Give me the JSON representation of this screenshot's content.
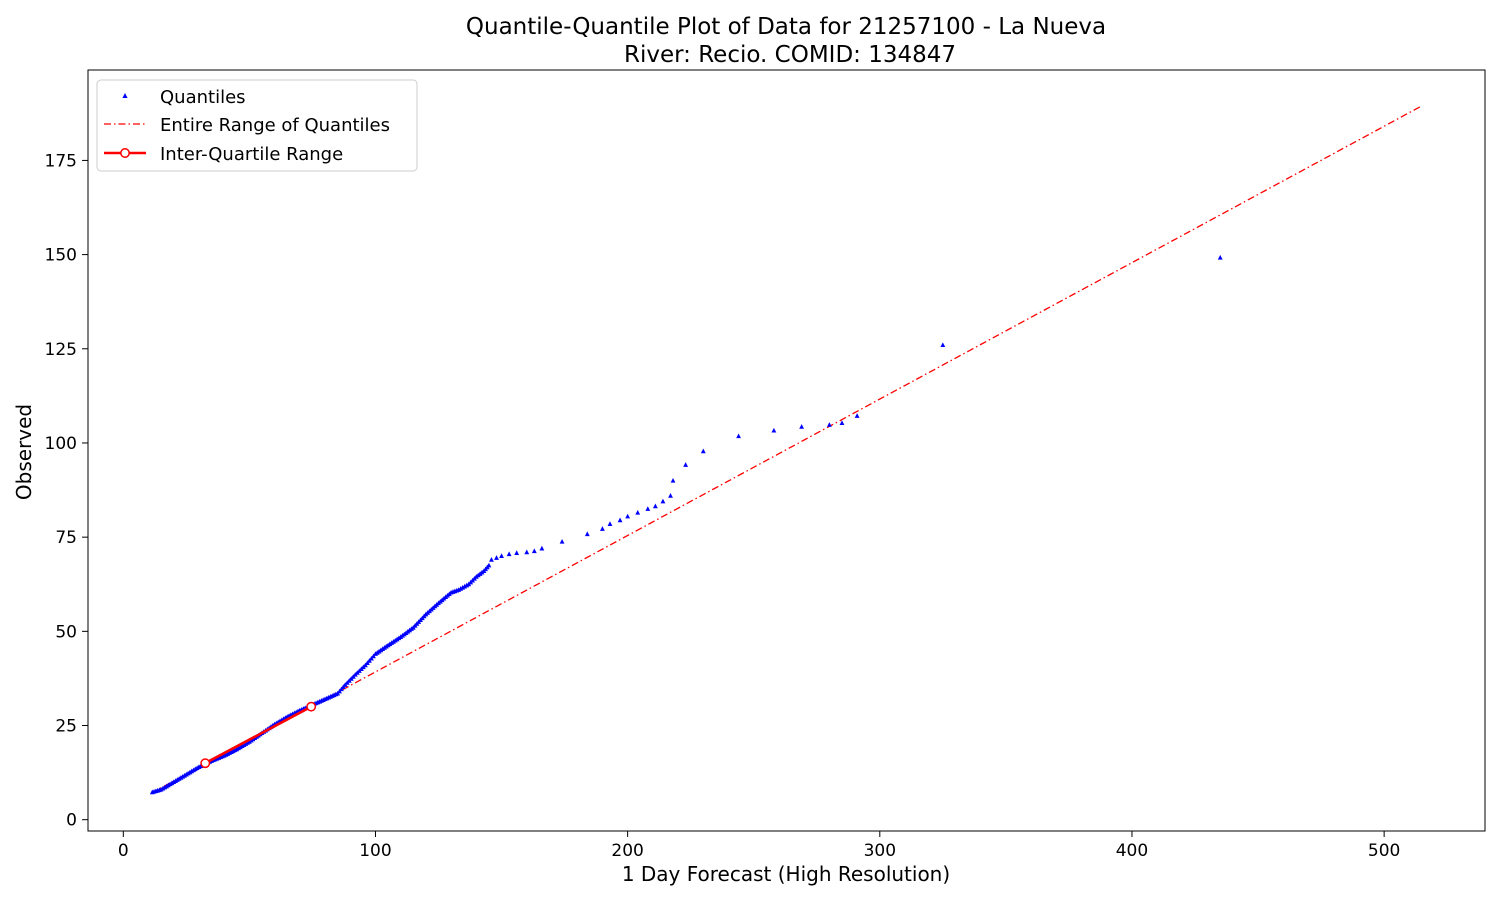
{
  "chart_data": {
    "type": "scatter",
    "title_line1": "Quantile-Quantile Plot of Data for 21257100 - La Nueva",
    "title_line2": "River: Recio. COMID: 134847",
    "xlabel": "1 Day Forecast (High Resolution)",
    "ylabel": "Observed",
    "xlim": [
      -14,
      540
    ],
    "ylim": [
      -3,
      199
    ],
    "xticks": [
      0,
      100,
      200,
      300,
      400,
      500
    ],
    "yticks": [
      0,
      25,
      50,
      75,
      100,
      125,
      150,
      175
    ],
    "grid": false,
    "legend_position": "upper-left",
    "legend": [
      "Quantiles",
      "Entire Range of Quantiles",
      "Inter-Quartile Range"
    ],
    "colors": {
      "quantiles": "#0000ff",
      "entire_range": "#ff0000",
      "iqr": "#ff0000"
    },
    "entire_range_line": {
      "x": [
        11,
        515
      ],
      "y": [
        7.0,
        189.5
      ]
    },
    "inter_quartile_range": {
      "x": [
        32.5,
        74.5
      ],
      "y": [
        15.0,
        30.0
      ]
    },
    "quantile_curve": {
      "x": [
        11.5,
        15,
        20,
        25,
        30,
        35,
        40,
        45,
        50,
        55,
        60,
        65,
        70,
        75,
        80,
        85,
        88,
        92,
        96,
        100,
        105,
        110,
        115,
        120,
        125,
        130,
        133,
        137,
        140,
        143,
        145
      ],
      "y": [
        7.3,
        8.0,
        10.0,
        12.0,
        14.0,
        15.6,
        17.0,
        18.7,
        20.7,
        23.0,
        25.3,
        27.3,
        29.0,
        30.5,
        32.0,
        33.5,
        35.8,
        38.5,
        41.0,
        44.0,
        46.3,
        48.5,
        51.0,
        54.5,
        57.5,
        60.3,
        61.0,
        62.5,
        64.5,
        66.0,
        67.5
      ]
    },
    "quantile_tail": {
      "x": [
        146,
        148,
        150,
        153,
        156,
        160,
        163,
        166,
        174,
        184,
        190,
        193,
        197,
        200,
        204,
        208,
        211,
        214,
        217,
        218,
        223,
        230,
        244,
        258,
        269,
        280,
        285,
        291,
        325,
        435
      ],
      "y": [
        69.0,
        69.5,
        70.0,
        70.5,
        70.8,
        71.0,
        71.3,
        72.0,
        73.8,
        75.8,
        77.2,
        78.5,
        79.5,
        80.5,
        81.5,
        82.5,
        83.2,
        84.5,
        86.0,
        90.0,
        94.2,
        97.8,
        101.8,
        103.3,
        104.3,
        104.8,
        105.3,
        107.2,
        126.0,
        149.2
      ]
    }
  }
}
